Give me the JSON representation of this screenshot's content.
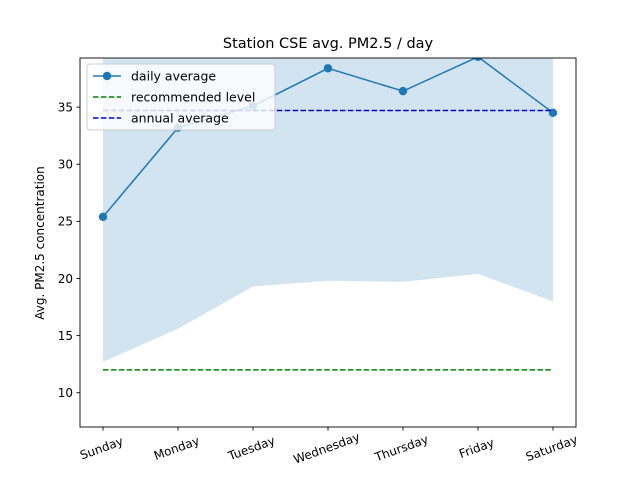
{
  "chart_data": {
    "type": "line",
    "title": "Station CSE avg. PM2.5 / day",
    "xlabel": "",
    "ylabel": "Avg. PM2.5 concentration",
    "categories": [
      "Sunday",
      "Monday",
      "Tuesday",
      "Wednesday",
      "Thursday",
      "Friday",
      "Saturday"
    ],
    "ylim": [
      7,
      39.3
    ],
    "yticks": [
      10,
      15,
      20,
      25,
      30,
      35
    ],
    "series": [
      {
        "name": "daily average",
        "values": [
          25.4,
          33.2,
          35.1,
          38.4,
          36.4,
          39.4,
          34.5
        ],
        "color": "#1f77b4",
        "style": "solid-marker"
      },
      {
        "name": "recommended level",
        "values": [
          12,
          12,
          12,
          12,
          12,
          12,
          12
        ],
        "color": "#008000",
        "style": "dashed"
      },
      {
        "name": "annual average",
        "values": [
          34.7,
          34.7,
          34.7,
          34.7,
          34.7,
          34.7,
          34.7
        ],
        "color": "#0000cc",
        "style": "dashed"
      }
    ],
    "band": {
      "lower": [
        12.7,
        15.6,
        19.3,
        19.8,
        19.7,
        20.4,
        18.0
      ],
      "upper": [
        39.3,
        39.3,
        39.3,
        39.3,
        39.3,
        39.3,
        39.3
      ],
      "color": "#1f77b4",
      "opacity": 0.2
    },
    "legend_position": "top-left",
    "grid": false
  }
}
